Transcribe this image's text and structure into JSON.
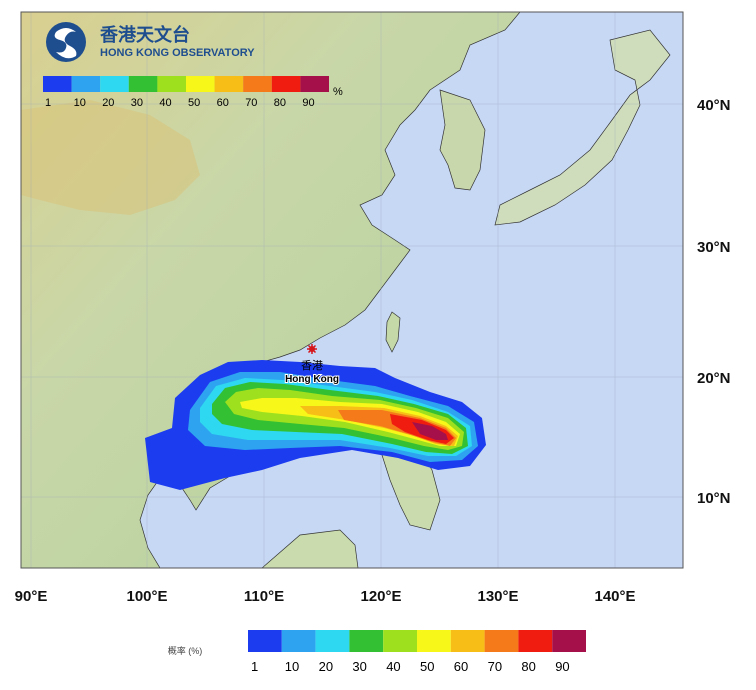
{
  "logo": {
    "chinese_name": "香港天文台",
    "english_name": "HONG KONG OBSERVATORY"
  },
  "legend_top": {
    "labels": [
      "1",
      "10",
      "20",
      "30",
      "40",
      "50",
      "60",
      "70",
      "80",
      "90"
    ],
    "unit": "%"
  },
  "legend_bottom": {
    "caption": "概率 (%)",
    "labels": [
      "1",
      "10",
      "20",
      "30",
      "40",
      "50",
      "60",
      "70",
      "80",
      "90"
    ]
  },
  "colors": {
    "bins": [
      "#1c3cf0",
      "#2ea4f0",
      "#2ed8f0",
      "#33c033",
      "#9ee01e",
      "#f7f71a",
      "#f6be16",
      "#f47a1a",
      "#f01c10",
      "#a5104a"
    ],
    "sea": "#c7d8f5",
    "marker": "#d4161b"
  },
  "place": {
    "name_zh": "香港",
    "name_en": "Hong Kong"
  },
  "lat_labels": [
    "40°N",
    "30°N",
    "20°N",
    "10°N"
  ],
  "lon_labels": [
    "90°E",
    "100°E",
    "110°E",
    "120°E",
    "130°E",
    "140°E"
  ]
}
